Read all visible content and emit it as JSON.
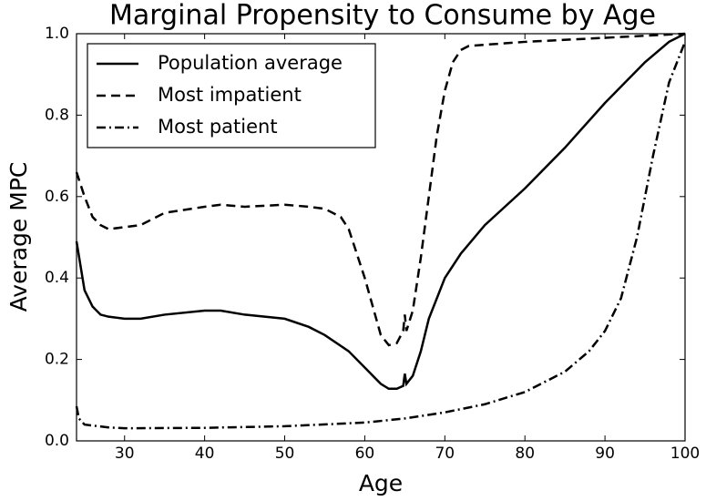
{
  "chart_data": {
    "type": "line",
    "title": "Marginal Propensity to Consume by Age",
    "xlabel": "Age",
    "ylabel": "Average MPC",
    "xlim": [
      24,
      100
    ],
    "xticks": [
      30,
      40,
      50,
      60,
      70,
      80,
      90,
      100
    ],
    "ylim": [
      0,
      1
    ],
    "yticks": [
      {
        "value": 0,
        "label": "0.0"
      },
      0.2,
      0.4,
      0.6,
      0.8,
      {
        "value": 1,
        "label": "1.0"
      }
    ],
    "legend": "upper left",
    "series": [
      {
        "name": "Population average",
        "color": "#000000",
        "linestyle": "solid",
        "x": [
          24,
          25,
          26,
          27,
          28,
          30,
          32,
          35,
          40,
          42,
          45,
          50,
          53,
          55,
          58,
          60,
          62,
          63,
          64,
          64.8,
          65,
          65.2,
          66,
          67,
          68,
          70,
          72,
          75,
          80,
          85,
          90,
          95,
          98,
          100
        ],
        "values": [
          0.49,
          0.37,
          0.33,
          0.31,
          0.305,
          0.3,
          0.3,
          0.31,
          0.32,
          0.32,
          0.31,
          0.3,
          0.28,
          0.26,
          0.22,
          0.18,
          0.14,
          0.128,
          0.128,
          0.135,
          0.165,
          0.14,
          0.16,
          0.22,
          0.3,
          0.4,
          0.46,
          0.53,
          0.62,
          0.72,
          0.83,
          0.93,
          0.98,
          1.0
        ]
      },
      {
        "name": "Most impatient",
        "color": "#000000",
        "linestyle": "dashed",
        "x": [
          24,
          25,
          26,
          27,
          28,
          30,
          32,
          35,
          40,
          42,
          45,
          50,
          53,
          55,
          57,
          58,
          60,
          61,
          62,
          63,
          64,
          64.8,
          65,
          65.2,
          66,
          67,
          68,
          69,
          70,
          71,
          72,
          73,
          80,
          90,
          100
        ],
        "values": [
          0.66,
          0.6,
          0.55,
          0.53,
          0.52,
          0.525,
          0.53,
          0.56,
          0.575,
          0.58,
          0.575,
          0.58,
          0.575,
          0.57,
          0.55,
          0.52,
          0.4,
          0.33,
          0.26,
          0.235,
          0.24,
          0.27,
          0.31,
          0.27,
          0.32,
          0.45,
          0.6,
          0.75,
          0.86,
          0.93,
          0.96,
          0.97,
          0.98,
          0.99,
          1.0
        ]
      },
      {
        "name": "Most patient",
        "color": "#000000",
        "linestyle": "dashdot",
        "x": [
          24,
          24.3,
          25,
          28,
          30,
          40,
          50,
          60,
          65,
          70,
          75,
          80,
          85,
          88,
          90,
          92,
          94,
          96,
          98,
          100
        ],
        "values": [
          0.085,
          0.055,
          0.04,
          0.033,
          0.031,
          0.032,
          0.036,
          0.045,
          0.055,
          0.07,
          0.09,
          0.12,
          0.17,
          0.22,
          0.27,
          0.35,
          0.5,
          0.7,
          0.88,
          0.98
        ]
      }
    ]
  }
}
